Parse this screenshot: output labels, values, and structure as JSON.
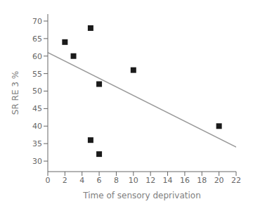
{
  "chart_data": {
    "type": "scatter",
    "xlabel": "Time of sensory deprivation",
    "ylabel": "SR RE 3 %",
    "series": [
      {
        "type": "scatter",
        "marker": "square",
        "color": "#1a1a1a",
        "x": [
          2,
          3,
          5,
          5,
          6,
          6,
          10,
          20
        ],
        "values": [
          64,
          60,
          36,
          68,
          52,
          32,
          56,
          40
        ]
      },
      {
        "type": "line",
        "line_style": "solid",
        "color": "#999999",
        "x": [
          0,
          22
        ],
        "values": [
          61,
          34
        ]
      }
    ],
    "xlim": [
      0,
      22
    ],
    "ylim": [
      27,
      72
    ],
    "xticks": [
      0,
      2,
      4,
      6,
      8,
      10,
      12,
      14,
      16,
      18,
      20,
      22
    ],
    "yticks": [
      30,
      35,
      40,
      45,
      50,
      55,
      60,
      65,
      70
    ],
    "grid": false
  }
}
